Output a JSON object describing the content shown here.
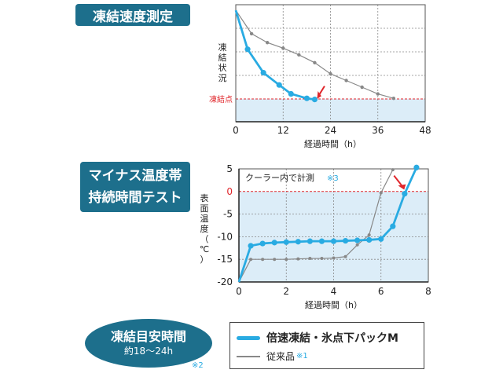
{
  "titles": {
    "freeze_speed": "凍結速度測定",
    "minus_line1": "マイナス温度帯",
    "minus_line2": "持続時間テスト"
  },
  "badge": {
    "line1": "凍結目安時間",
    "line2": "約18～24h",
    "note": "※2"
  },
  "legend": {
    "new_label": "倍速凍結・氷点下パックM",
    "old_label": "従来品",
    "old_note": "※1"
  },
  "colors": {
    "accent": "#1d6f8c",
    "new_series": "#29abe2",
    "old_series": "#888888",
    "marker": "#e0262b",
    "fill": "#dcedf8"
  },
  "chart_data": [
    {
      "type": "line",
      "ylabel": "凍結状況",
      "xlabel": "経過時間（h）",
      "xlim": [
        0,
        48
      ],
      "xticks": [
        "0",
        "12",
        "24",
        "36",
        "48"
      ],
      "reference_label": "凍結点",
      "series": [
        {
          "name": "倍速凍結・氷点下パックM",
          "x": [
            0,
            3,
            7,
            11,
            14,
            18,
            20
          ],
          "y": [
            10,
            6.5,
            4.4,
            3.3,
            2.5,
            2.1,
            2.0
          ]
        },
        {
          "name": "従来品",
          "x": [
            0,
            4,
            8,
            12,
            16,
            20,
            24,
            28,
            32,
            36,
            40
          ],
          "y": [
            10,
            7.9,
            7.1,
            6.6,
            6.0,
            5.3,
            4.3,
            3.7,
            3.1,
            2.5,
            2.1
          ]
        }
      ]
    },
    {
      "type": "line",
      "ylabel": "表面温度（℃）",
      "xlabel": "経過時間（h）",
      "xlim": [
        0,
        8
      ],
      "ylim": [
        -20,
        5
      ],
      "xticks": [
        "0",
        "2",
        "4",
        "6",
        "8"
      ],
      "yticks": [
        "5",
        "0",
        "-5",
        "-10",
        "-15",
        "-20"
      ],
      "annotation": "クーラー内で計測",
      "annotation_note": "※3",
      "series": [
        {
          "name": "倍速凍結・氷点下パックM",
          "x": [
            0,
            0.5,
            1,
            1.5,
            2,
            2.5,
            3,
            3.5,
            4,
            4.5,
            5,
            5.5,
            6,
            6.5,
            7,
            7.5
          ],
          "y": [
            -20,
            -12,
            -11.5,
            -11.3,
            -11.2,
            -11.1,
            -11,
            -11,
            -11,
            -10.9,
            -10.8,
            -10.7,
            -10.5,
            -7.7,
            -0.5,
            5.3
          ]
        },
        {
          "name": "従来品",
          "x": [
            0,
            0.5,
            1,
            1.5,
            2,
            2.5,
            3,
            3.5,
            4,
            4.5,
            5,
            5.5,
            6,
            6.5
          ],
          "y": [
            -20,
            -15,
            -15,
            -15,
            -15,
            -14.9,
            -14.8,
            -14.8,
            -14.7,
            -14.4,
            -11.8,
            -9.6,
            -0.3,
            4.8
          ]
        }
      ]
    }
  ]
}
